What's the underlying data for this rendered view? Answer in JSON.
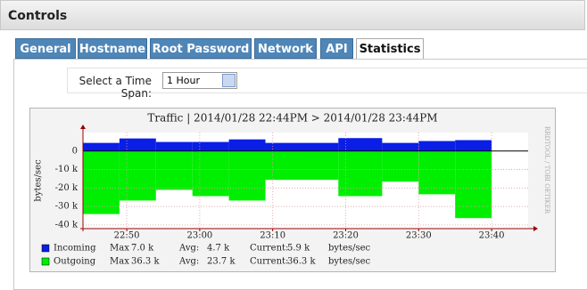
{
  "header": {
    "title": "Controls"
  },
  "tabs": [
    "General",
    "Hostname",
    "Root Password",
    "Network",
    "API",
    "Statistics"
  ],
  "active_tab": 5,
  "time_span": {
    "label": "Select a Time Span:",
    "selected": "1 Hour"
  },
  "chart_data": {
    "type": "step-area",
    "title": "Traffic | 2014/01/28 22:44PM > 2014/01/28 23:44PM",
    "y_label": "bytes/sec",
    "side_text": "RRDTOOL / TOBI OETIKER",
    "x": [
      "22:44",
      "22:49",
      "22:54",
      "22:59",
      "23:04",
      "23:09",
      "23:19",
      "23:25",
      "23:30",
      "23:35",
      "23:40"
    ],
    "xlim": [
      "22:44",
      "23:45"
    ],
    "xticks": [
      "22:50",
      "23:00",
      "23:10",
      "23:20",
      "23:30",
      "23:40"
    ],
    "ylim": [
      -42000,
      10000
    ],
    "yticks": [
      0,
      {
        "value": -10000,
        "label": "-10 k"
      },
      {
        "value": -20000,
        "label": "-20 k"
      },
      {
        "value": -30000,
        "label": "-30 k"
      },
      {
        "value": -40000,
        "label": "-40 k"
      }
    ],
    "grid": true,
    "series": [
      {
        "name": "Incoming",
        "color": "#0a1ee6",
        "values": [
          4400,
          6800,
          4900,
          4900,
          6300,
          4400,
          7000,
          4400,
          5400,
          5900,
          null
        ],
        "stats": [
          {
            "label": "Max",
            "value": "7.0 k"
          },
          {
            "label": "Avg:",
            "value": "4.7 k"
          },
          {
            "label": "Current:",
            "value": "5.9 k"
          },
          {
            "label": "bytes/sec"
          }
        ]
      },
      {
        "name": "Outgoing",
        "color": "#00ee00",
        "values": [
          -34100,
          -26800,
          -21000,
          -24400,
          -26800,
          -15600,
          -24400,
          -16600,
          -23400,
          -36300,
          null
        ],
        "stats": [
          {
            "label": "Max",
            "value": "36.3 k"
          },
          {
            "label": "Avg:",
            "value": "23.7 k"
          },
          {
            "label": "Current:",
            "value": "36.3 k"
          },
          {
            "label": "bytes/sec"
          }
        ]
      }
    ]
  }
}
